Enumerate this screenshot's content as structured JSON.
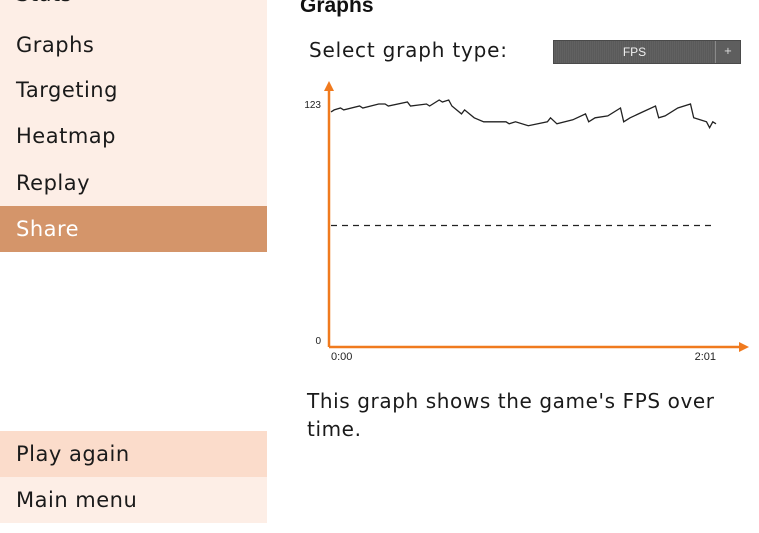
{
  "sidebar": {
    "items": [
      {
        "label": "Stats",
        "active": false
      },
      {
        "label": "Graphs",
        "active": false
      },
      {
        "label": "Targeting",
        "active": false
      },
      {
        "label": "Heatmap",
        "active": false
      },
      {
        "label": "Replay",
        "active": false
      },
      {
        "label": "Share",
        "active": true
      }
    ],
    "bottom": {
      "play_again": "Play again",
      "main_menu": "Main menu"
    }
  },
  "main": {
    "title": "Graphs",
    "select_label": "Select graph type:",
    "select_value": "FPS",
    "select_arrow": "+",
    "caption": "This graph shows the game's FPS over time."
  },
  "colors": {
    "accent": "#f07a1e",
    "active_nav": "#d4956a",
    "nav_bg": "#fdeee6",
    "nav_primary_bg": "#fbdccb"
  },
  "chart_data": {
    "type": "line",
    "title": "",
    "xlabel": "",
    "ylabel": "",
    "ylim": [
      0,
      123
    ],
    "xlim_seconds": [
      0,
      121
    ],
    "y_ticks": [
      "0",
      "123"
    ],
    "x_ticks": [
      "0:00",
      "2:01"
    ],
    "reference_line": {
      "y": 61.5,
      "style": "dashed"
    },
    "series": [
      {
        "x": [
          0,
          1,
          3,
          4,
          9,
          10,
          15,
          17,
          18,
          24,
          25,
          30,
          31,
          34,
          35,
          37,
          38,
          41,
          42,
          45,
          48,
          55,
          56,
          58,
          62,
          68,
          69,
          71,
          76,
          80,
          81,
          83,
          87,
          91,
          92,
          94,
          98,
          102,
          103,
          105,
          109,
          113,
          114,
          116,
          118,
          119,
          120,
          121
        ],
        "values": [
          119,
          120,
          121,
          120,
          122,
          121,
          123,
          123,
          122,
          124,
          122,
          123,
          122,
          125,
          124,
          125,
          122,
          118,
          120,
          116,
          114,
          114,
          113,
          114,
          112,
          114,
          116,
          113,
          115,
          118,
          114,
          116,
          117,
          121,
          114,
          116,
          119,
          122,
          116,
          117,
          121,
          123,
          116,
          115,
          114,
          111,
          114,
          113
        ]
      }
    ]
  }
}
